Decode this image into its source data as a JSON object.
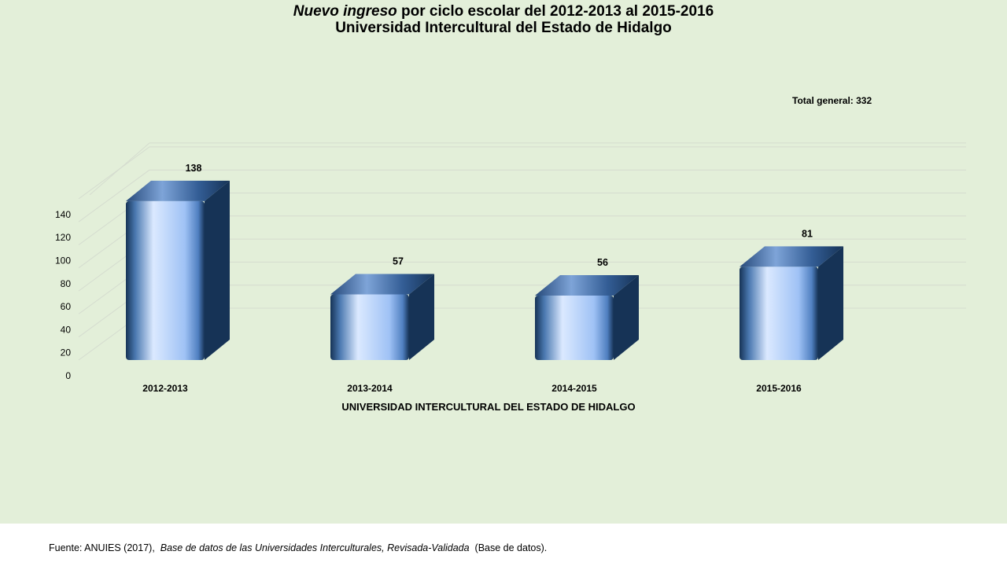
{
  "title": {
    "line1_italic": "Nuevo ingreso",
    "line1_rest": " por ciclo escolar del 2012-2013 al 2015-2016",
    "line2": "Universidad Intercultural del Estado de Hidalgo"
  },
  "annotation": "Total general: 332",
  "source": {
    "prefix": "Fuente: ANUIES (2017),",
    "italic": "Base de datos de las Universidades  Interculturales, Revisada-Validada",
    "suffix": "(Base de datos)."
  },
  "colors": {
    "background": "#e3efd9",
    "bar_dark": "#163356",
    "bar_light": "#dbe9ff",
    "bar_mid": "#9fc2f5"
  },
  "chart_data": {
    "type": "bar",
    "three_d": true,
    "categories": [
      "2012-2013",
      "2013-2014",
      "2014-2015",
      "2015-2016"
    ],
    "values": [
      138,
      57,
      56,
      81
    ],
    "data_labels": [
      "138",
      "57",
      "56",
      "81"
    ],
    "xlabel": "UNIVERSIDAD INTERCULTURAL DEL ESTADO DE HIDALGO",
    "ylabel": "",
    "ylim": [
      0,
      140
    ],
    "yticks": [
      0,
      20,
      40,
      60,
      80,
      100,
      120,
      140
    ],
    "grid": true,
    "legend": "none"
  }
}
